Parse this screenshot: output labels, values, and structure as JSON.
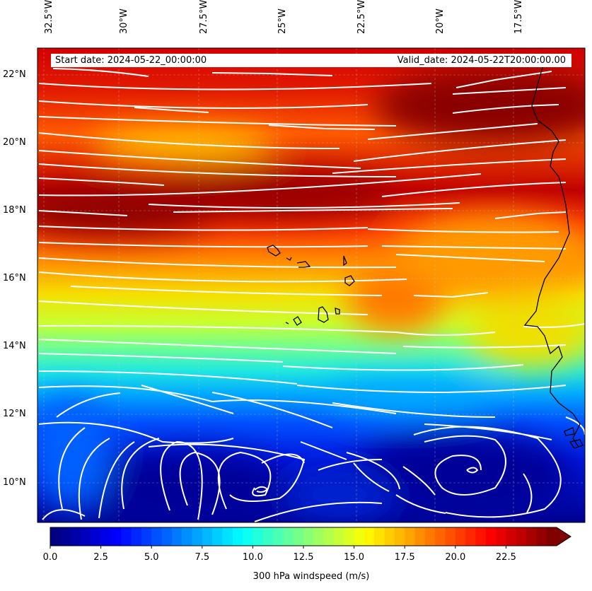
{
  "map": {
    "longitude_labels": [
      "32.5°W",
      "30°W",
      "27.5°W",
      "25°W",
      "22.5°W",
      "20°W",
      "17.5°W"
    ],
    "latitude_labels": [
      "22°N",
      "20°N",
      "18°N",
      "16°N",
      "14°N",
      "12°N",
      "10°N"
    ],
    "start_date": "Start date: 2024-05-22_00:00:00",
    "valid_date": "Valid_date: 2024-05-22T20:00:00.00"
  },
  "colorbar": {
    "ticks": [
      "0.0",
      "2.5",
      "5.0",
      "7.5",
      "10.0",
      "12.5",
      "15.0",
      "17.5",
      "20.0",
      "22.5"
    ],
    "label": "300 hPa windspeed (m/s)",
    "min": 0,
    "max": 25
  },
  "colors": {
    "streamline": "#ffffff",
    "coastline": "#000000"
  }
}
